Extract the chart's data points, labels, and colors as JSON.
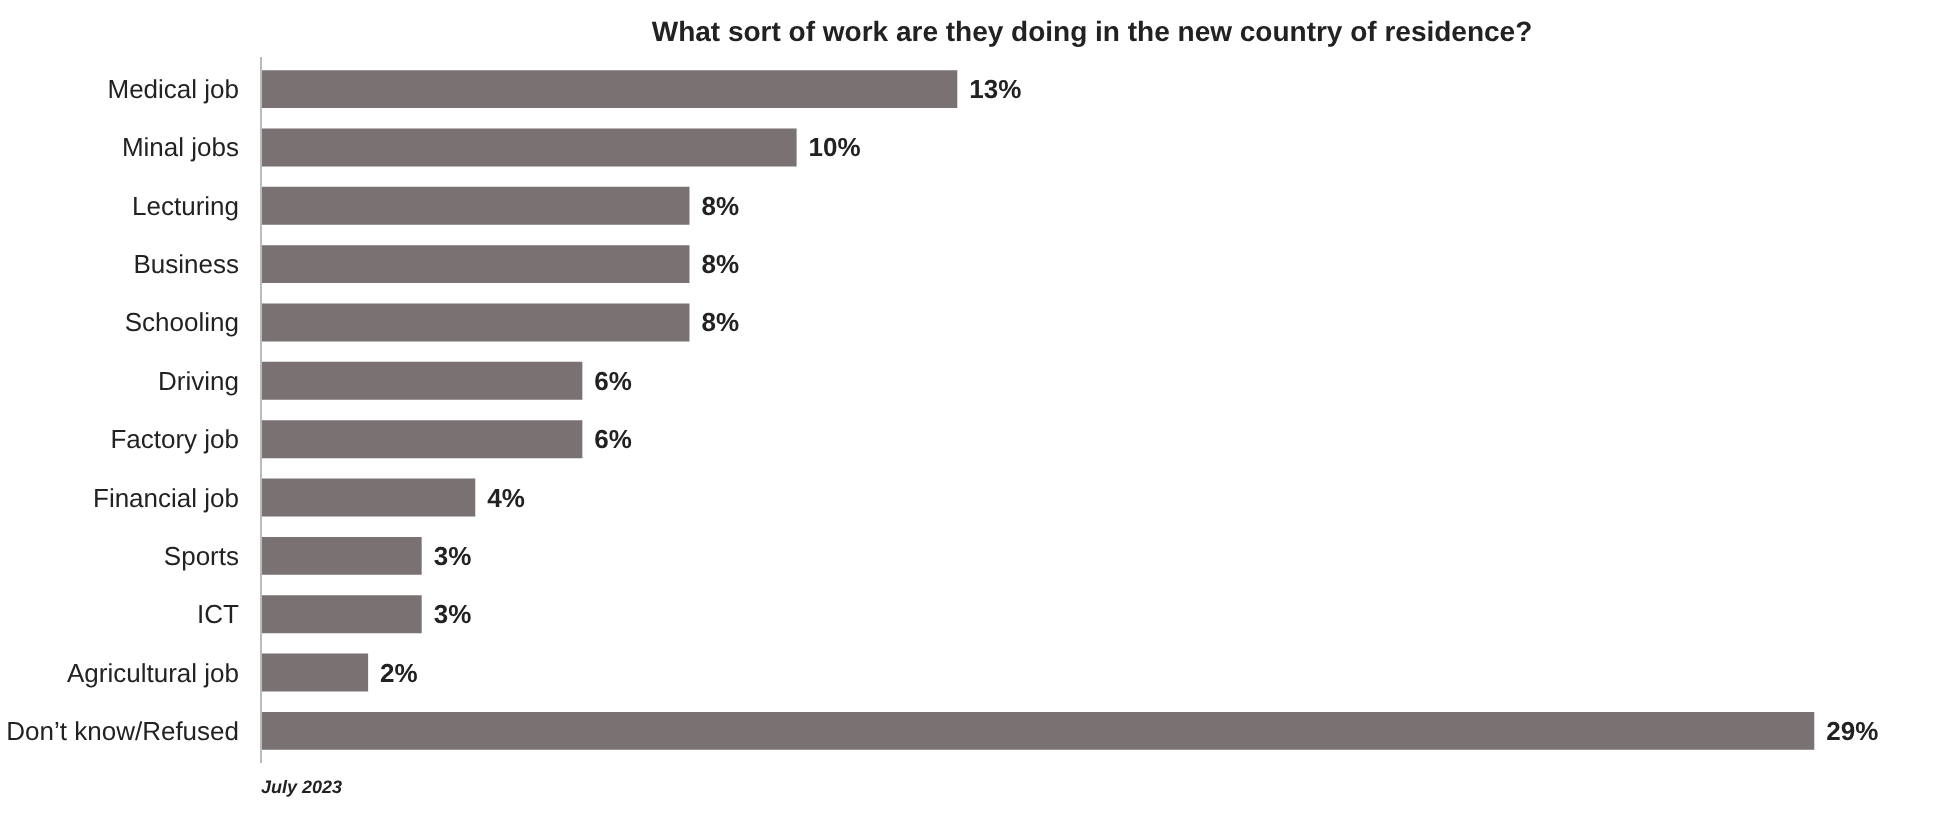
{
  "chart_data": {
    "type": "bar",
    "orientation": "horizontal",
    "title": "What sort of work are they doing in the new country of residence?",
    "categories": [
      "Medical job",
      "Minal jobs",
      "Lecturing",
      "Business",
      "Schooling",
      "Driving",
      "Factory job",
      "Financial job",
      "Sports",
      "ICT",
      "Agricultural job",
      "Don’t know/Refused"
    ],
    "values": [
      13,
      10,
      8,
      8,
      8,
      6,
      6,
      4,
      3,
      3,
      2,
      29
    ],
    "value_labels": [
      "13%",
      "10%",
      "8%",
      "8%",
      "8%",
      "6%",
      "6%",
      "4%",
      "3%",
      "3%",
      "2%",
      "29%"
    ],
    "color": "#797172",
    "annotations": [
      "July 2023"
    ],
    "grid": false
  }
}
